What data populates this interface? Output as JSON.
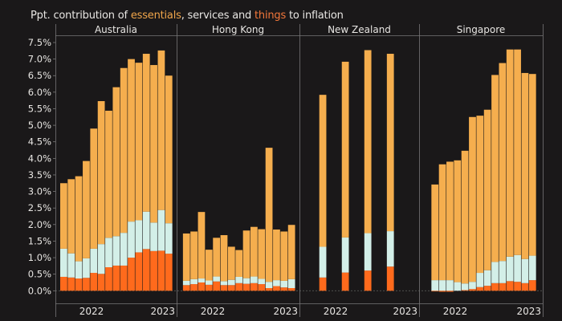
{
  "chart_data": {
    "type": "bar",
    "stacked": true,
    "title": {
      "prefix": "Ppt. contribution of ",
      "essentials": "essentials",
      "middle": ", services and ",
      "things": "things",
      "suffix": " to inflation"
    },
    "ylabel": "",
    "ylim": [
      0,
      7.5
    ],
    "yticks": [
      "0.0%",
      "0.5%",
      "1.0%",
      "1.5%",
      "2.0%",
      "2.5%",
      "3.0%",
      "3.5%",
      "4.0%",
      "4.5%",
      "5.0%",
      "5.5%",
      "6.0%",
      "6.5%",
      "7.0%",
      "7.5%"
    ],
    "colors": {
      "essentials": "#f5ae4e",
      "services": "#d3efe8",
      "things": "#ff6a1c",
      "title_essentials": "#f0a54a",
      "title_things": "#f2773a",
      "background": "#1a1819"
    },
    "series_names": [
      "things",
      "services",
      "essentials"
    ],
    "panels": [
      {
        "name": "Australia",
        "xticks": [
          "2022",
          "2023"
        ],
        "total": [
          3.25,
          3.37,
          3.46,
          3.92,
          4.9,
          5.73,
          5.44,
          6.15,
          6.73,
          7.0,
          6.89,
          7.16,
          6.82,
          7.26,
          6.5
        ],
        "things": [
          0.42,
          0.4,
          0.37,
          0.39,
          0.54,
          0.51,
          0.71,
          0.76,
          0.76,
          1.0,
          1.16,
          1.26,
          1.2,
          1.21,
          1.12
        ],
        "services": [
          0.85,
          0.73,
          0.52,
          0.59,
          0.73,
          0.9,
          0.89,
          0.89,
          0.99,
          1.09,
          0.97,
          1.13,
          0.86,
          1.23,
          0.92
        ],
        "offset": 0
      },
      {
        "name": "Hong Kong",
        "xticks": [
          "2022",
          "2023"
        ],
        "total": [
          1.73,
          1.79,
          2.38,
          1.24,
          1.6,
          1.68,
          1.33,
          1.23,
          1.82,
          1.93,
          1.86,
          4.32,
          1.85,
          1.79,
          1.99
        ],
        "things": [
          0.17,
          0.2,
          0.25,
          0.18,
          0.28,
          0.17,
          0.17,
          0.23,
          0.21,
          0.23,
          0.2,
          0.08,
          0.14,
          0.1,
          0.08
        ],
        "services": [
          0.13,
          0.15,
          0.12,
          0.13,
          0.15,
          0.12,
          0.16,
          0.19,
          0.17,
          0.2,
          0.16,
          0.19,
          0.18,
          0.2,
          0.27
        ],
        "offset": 0.2
      },
      {
        "name": "New Zealand",
        "xticks": [
          "2022",
          "2023"
        ],
        "total": [
          null,
          null,
          5.92,
          null,
          null,
          6.92,
          null,
          null,
          7.27,
          null,
          null,
          7.16
        ],
        "things": [
          null,
          null,
          0.4,
          null,
          null,
          0.55,
          null,
          null,
          0.61,
          null,
          null,
          0.73
        ],
        "services": [
          null,
          null,
          0.93,
          null,
          null,
          1.06,
          null,
          null,
          1.13,
          null,
          null,
          1.07
        ],
        "offset": 0
      },
      {
        "name": "Singapore",
        "xticks": [
          "2022",
          "2023"
        ],
        "total": [
          null,
          3.21,
          3.82,
          3.9,
          3.94,
          4.23,
          5.25,
          5.29,
          5.47,
          6.52,
          6.88,
          7.29,
          7.29,
          6.58,
          6.55
        ],
        "things": [
          null,
          -0.02,
          -0.03,
          -0.03,
          0.0,
          0.02,
          0.05,
          0.11,
          0.15,
          0.23,
          0.23,
          0.29,
          0.27,
          0.23,
          0.32
        ],
        "services": [
          null,
          0.32,
          0.32,
          0.32,
          0.26,
          0.2,
          0.22,
          0.43,
          0.47,
          0.64,
          0.67,
          0.74,
          0.81,
          0.73,
          0.74
        ],
        "offset": 0
      }
    ]
  }
}
